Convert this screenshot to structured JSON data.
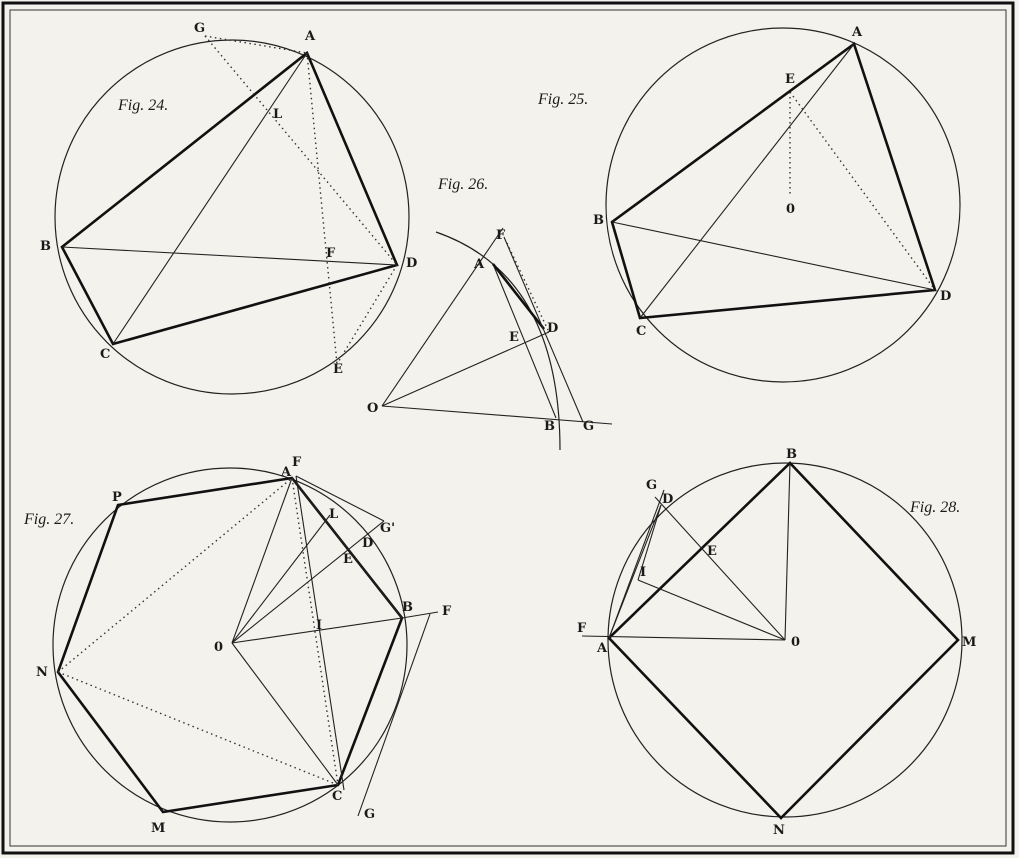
{
  "figures": {
    "fig24": {
      "caption": "Fig. 24.",
      "labels": {
        "G": "G",
        "A": "A",
        "L": "L",
        "B": "B",
        "F": "F",
        "D": "D",
        "C": "C",
        "E": "E"
      }
    },
    "fig25": {
      "caption": "Fig. 25.",
      "labels": {
        "A": "A",
        "E": "E",
        "O": "0",
        "B": "B",
        "D": "D",
        "C": "C"
      }
    },
    "fig26": {
      "caption": "Fig. 26.",
      "labels": {
        "F": "F",
        "A": "A",
        "D": "D",
        "E": "E",
        "O": "O",
        "B": "B",
        "G": "G"
      }
    },
    "fig27": {
      "caption": "Fig. 27.",
      "labels": {
        "F": "F",
        "A": "A",
        "P": "P",
        "L": "L",
        "Gp": "G'",
        "D": "D",
        "E": "E",
        "B": "B",
        "F2": "F",
        "O": "0",
        "I": "I",
        "N": "N",
        "M": "M",
        "C": "C",
        "G": "G"
      }
    },
    "fig28": {
      "caption": "Fig. 28.",
      "labels": {
        "B": "B",
        "G": "G",
        "D": "D",
        "E": "E",
        "I": "I",
        "F": "F",
        "A": "A",
        "O": "0",
        "M": "M",
        "N": "N"
      }
    }
  }
}
